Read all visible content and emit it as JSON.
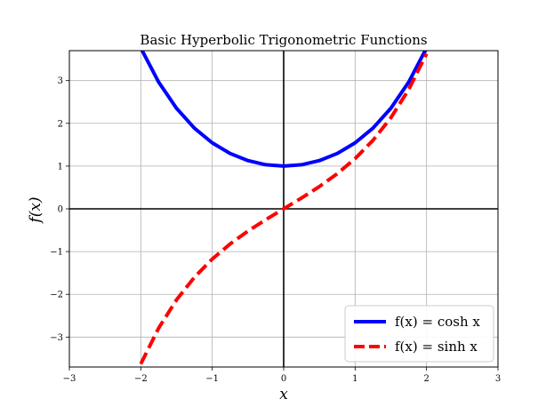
{
  "chart_data": {
    "type": "line",
    "title": "Basic Hyperbolic Trigonometric Functions",
    "xlabel": "x",
    "ylabel": "f(x)",
    "xlim": [
      -3,
      3
    ],
    "ylim": [
      -3.7,
      3.7
    ],
    "xticks": [
      -3,
      -2,
      -1,
      0,
      1,
      2,
      3
    ],
    "yticks": [
      -3,
      -2,
      -1,
      0,
      1,
      2,
      3
    ],
    "xtick_labels": [
      "−3",
      "−2",
      "−1",
      "0",
      "1",
      "2",
      "3"
    ],
    "ytick_labels": [
      "−3",
      "−2",
      "−1",
      "0",
      "1",
      "2",
      "3"
    ],
    "grid": true,
    "legend_position": "lower-right",
    "series": [
      {
        "name": "f(x) = cosh x",
        "color": "#0000ff",
        "style": "solid",
        "x": [
          -2.0,
          -1.75,
          -1.5,
          -1.25,
          -1.0,
          -0.75,
          -0.5,
          -0.25,
          0.0,
          0.25,
          0.5,
          0.75,
          1.0,
          1.25,
          1.5,
          1.75,
          2.0
        ],
        "y": [
          3.762,
          2.964,
          2.352,
          1.888,
          1.543,
          1.295,
          1.128,
          1.031,
          1.0,
          1.031,
          1.128,
          1.295,
          1.543,
          1.888,
          2.352,
          2.964,
          3.762
        ]
      },
      {
        "name": "f(x) = sinh x",
        "color": "#ff0000",
        "style": "dashed",
        "x": [
          -2.0,
          -1.75,
          -1.5,
          -1.25,
          -1.0,
          -0.75,
          -0.5,
          -0.25,
          0.0,
          0.25,
          0.5,
          0.75,
          1.0,
          1.25,
          1.5,
          1.75,
          2.0
        ],
        "y": [
          -3.627,
          -2.79,
          -2.129,
          -1.602,
          -1.175,
          -0.822,
          -0.521,
          -0.253,
          0.0,
          0.253,
          0.521,
          0.822,
          1.175,
          1.602,
          2.129,
          2.79,
          3.627
        ]
      }
    ]
  }
}
